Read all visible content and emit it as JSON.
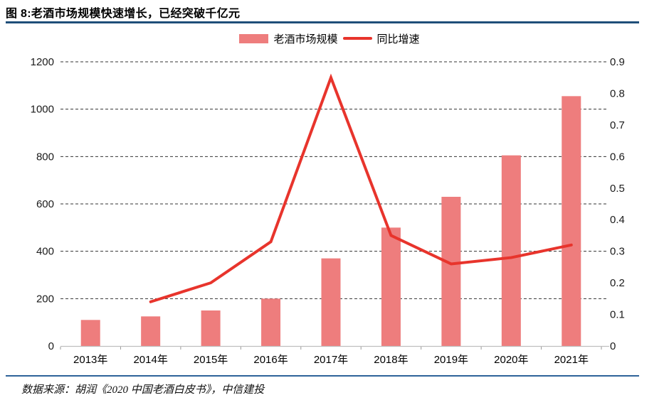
{
  "header": {
    "title": "图 8:老酒市场规模快速增长，已经突破千亿元"
  },
  "chart_data": {
    "type": "combo-bar-line",
    "title": "图 8:老酒市场规模快速增长，已经突破千亿元",
    "categories": [
      "2013年",
      "2014年",
      "2015年",
      "2016年",
      "2017年",
      "2018年",
      "2019年",
      "2020年",
      "2021年"
    ],
    "series": [
      {
        "name": "老酒市场规模",
        "type": "bar",
        "axis": "left",
        "color": "#ee7d7d",
        "values": [
          110,
          125,
          150,
          200,
          370,
          500,
          630,
          805,
          1055
        ]
      },
      {
        "name": "同比增速",
        "type": "line",
        "axis": "right",
        "color": "#e8342c",
        "values": [
          null,
          0.14,
          0.2,
          0.33,
          0.85,
          0.35,
          0.26,
          0.28,
          0.32
        ]
      }
    ],
    "left_axis": {
      "min": 0,
      "max": 1200,
      "ticks": [
        "1200",
        "1000",
        "800",
        "600",
        "400",
        "200",
        "0"
      ]
    },
    "right_axis": {
      "min": 0,
      "max": 0.9,
      "ticks": [
        "0.9",
        "0.8",
        "0.7",
        "0.6",
        "0.5",
        "0.4",
        "0.3",
        "0.2",
        "0.1",
        "0"
      ]
    },
    "grid": "horizontal-dashed",
    "legend_position": "top-center"
  },
  "footer": {
    "source": "数据来源：胡润《2020 中国老酒白皮书》，中信建投"
  },
  "colors": {
    "title_rule": "#1f4e79",
    "footer_rule": "#2e6399",
    "bar": "#ee7d7d",
    "line": "#e8342c"
  }
}
